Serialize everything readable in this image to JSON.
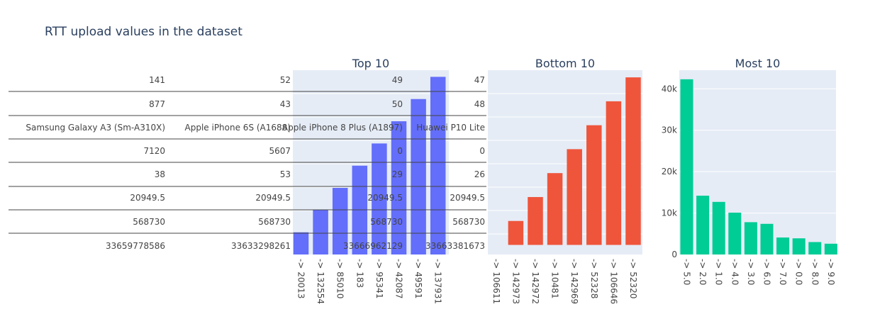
{
  "title": "RTT upload values in the dataset",
  "table": {
    "columns": [
      [
        "141",
        "877",
        "Samsung Galaxy A3 (Sm-A310X)",
        "7120",
        "38",
        "20949.5",
        "568730",
        "33659778586"
      ],
      [
        "52",
        "43",
        "Apple iPhone 6S (A1688)",
        "5607",
        "53",
        "20949.5",
        "568730",
        "33633298261"
      ],
      [
        "49",
        "50",
        "Apple iPhone 8 Plus (A1897)",
        "0",
        "29",
        "20949.5",
        "568730",
        "33666962129"
      ],
      [
        "47",
        "48",
        "Huawei P10 Lite",
        "0",
        "26",
        "20949.5",
        "568730",
        "33663381673"
      ]
    ]
  },
  "chart_data": [
    {
      "type": "bar",
      "title": "Top 10",
      "color": "#636efa",
      "categories": [
        "-> 20013",
        "-> 132554",
        "-> 85010",
        "-> 183",
        "-> 95341",
        "-> 42087",
        "-> 49591",
        "-> 137931"
      ],
      "values": [
        1,
        2,
        3,
        4,
        5,
        6,
        7,
        8
      ],
      "ylim": [
        0,
        8.3
      ]
    },
    {
      "type": "bar",
      "title": "Bottom 10",
      "color": "#ef553b",
      "categories": [
        "-> 106611",
        "-> 142973",
        "-> 142972",
        "-> 10481",
        "-> 142969",
        "-> 52328",
        "-> 106646",
        "-> 52320"
      ],
      "values": [
        0,
        1,
        2,
        3,
        4,
        5,
        6,
        7
      ],
      "ylim": [
        -0.4,
        7.3
      ]
    },
    {
      "type": "bar",
      "title": "Most 10",
      "color": "#00cc96",
      "categories": [
        "-> 5.0",
        "-> 2.0",
        "-> 1.0",
        "-> 4.0",
        "-> 3.0",
        "-> 6.0",
        "-> 7.0",
        "-> 0.0",
        "-> 8.0",
        "-> 9.0"
      ],
      "values": [
        42300,
        14200,
        12700,
        10100,
        7800,
        7400,
        4100,
        3900,
        3000,
        2600
      ],
      "ylim": [
        0,
        44500
      ],
      "yticks": [
        0,
        10000,
        20000,
        30000,
        40000
      ],
      "yticklabels": [
        "0",
        "10k",
        "20k",
        "30k",
        "40k"
      ],
      "grid": true
    }
  ]
}
